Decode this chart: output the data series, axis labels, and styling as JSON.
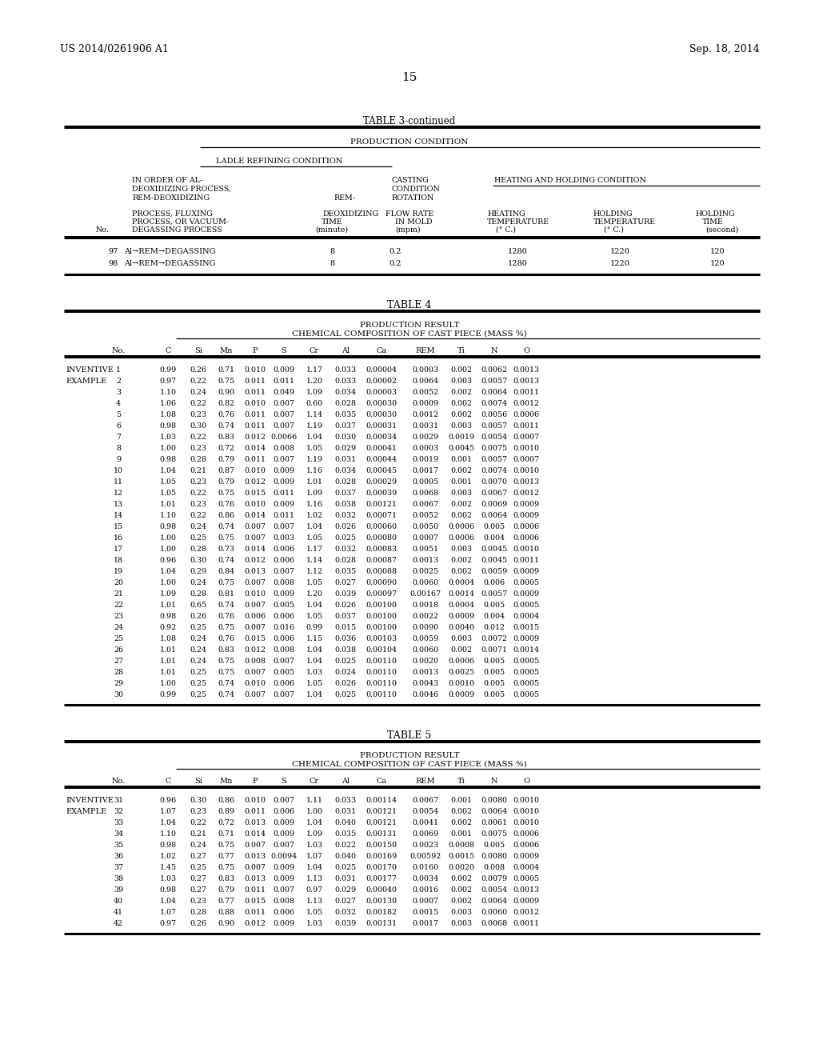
{
  "header_left": "US 2014/0261906 A1",
  "header_right": "Sep. 18, 2014",
  "page_number": "15",
  "table3_title": "TABLE 3-continued",
  "table3_subtitle1": "PRODUCTION CONDITION",
  "table3_ladle": "LADLE REFINING CONDITION",
  "table3_col1_line1": "IN ORDER OF AL-",
  "table3_col1_line2": "DEOXIDIZING PROCESS,",
  "table3_col1_line3": "REM-DEOXIDIZING",
  "table3_col2_header": "REM-",
  "table3_col3_line1": "CASTING",
  "table3_col3_line2": "CONDITION",
  "table3_col3_line3": "ROTATION",
  "table3_heating": "HEATING AND HOLDING CONDITION",
  "table3_col1_sub1": "PROCESS, FLUXING",
  "table3_col1_sub2": "PROCESS, OR VACUUM-",
  "table3_col2_sub": "DEOXIDIZING",
  "table3_col2_sub2": "TIME",
  "table3_col2_sub3": "(minute)",
  "table3_col3_sub": "FLOW RATE",
  "table3_col3_sub2": "IN MOLD",
  "table3_col3_sub3": "(mpm)",
  "table3_col4_sub": "HEATING",
  "table3_col4_sub2": "TEMPERATURE",
  "table3_col4_sub3": "(° C.)",
  "table3_col5_sub": "HOLDING",
  "table3_col5_sub2": "TEMPERATURE",
  "table3_col5_sub3": "(° C.)",
  "table3_col6_sub": "HOLDING",
  "table3_col6_sub2": "TIME",
  "table3_col6_sub3": "(second)",
  "table3_col1_last": "DEGASSING PROCESS",
  "table3_no_label": "No.",
  "table3_data": [
    [
      "97",
      "Al→REM→DEGASSING",
      "8",
      "0.2",
      "1280",
      "1220",
      "120"
    ],
    [
      "98",
      "Al→REM→DEGASSING",
      "8",
      "0.2",
      "1280",
      "1220",
      "120"
    ]
  ],
  "table4_title": "TABLE 4",
  "table4_subtitle1": "PRODUCTION RESULT",
  "table4_subtitle2": "CHEMICAL COMPOSITION OF CAST PIECE (MASS %)",
  "table4_col_headers": [
    "No.",
    "C",
    "Si",
    "Mn",
    "P",
    "S",
    "Cr",
    "Al",
    "Ca",
    "REM",
    "Ti",
    "N",
    "O"
  ],
  "table4_data": [
    [
      1,
      "0.99",
      "0.26",
      "0.71",
      "0.010",
      "0.009",
      "1.17",
      "0.033",
      "0.00004",
      "0.0003",
      "0.002",
      "0.0062",
      "0.0013"
    ],
    [
      2,
      "0.97",
      "0.22",
      "0.75",
      "0.011",
      "0.011",
      "1.20",
      "0.033",
      "0.00002",
      "0.0064",
      "0.003",
      "0.0057",
      "0.0013"
    ],
    [
      3,
      "1.10",
      "0.24",
      "0.90",
      "0.011",
      "0.049",
      "1.09",
      "0.034",
      "0.00003",
      "0.0052",
      "0.002",
      "0.0064",
      "0.0011"
    ],
    [
      4,
      "1.06",
      "0.22",
      "0.82",
      "0.010",
      "0.007",
      "0.60",
      "0.028",
      "0.00030",
      "0.0009",
      "0.002",
      "0.0074",
      "0.0012"
    ],
    [
      5,
      "1.08",
      "0.23",
      "0.76",
      "0.011",
      "0.007",
      "1.14",
      "0.035",
      "0.00030",
      "0.0012",
      "0.002",
      "0.0056",
      "0.0006"
    ],
    [
      6,
      "0.98",
      "0.30",
      "0.74",
      "0.011",
      "0.007",
      "1.19",
      "0.037",
      "0.00031",
      "0.0031",
      "0.003",
      "0.0057",
      "0.0011"
    ],
    [
      7,
      "1.03",
      "0.22",
      "0.83",
      "0.012",
      "0.0066",
      "1.04",
      "0.030",
      "0.00034",
      "0.0029",
      "0.0019",
      "0.0054",
      "0.0007"
    ],
    [
      8,
      "1.00",
      "0.23",
      "0.72",
      "0.014",
      "0.008",
      "1.05",
      "0.029",
      "0.00041",
      "0.0003",
      "0.0045",
      "0.0075",
      "0.0010"
    ],
    [
      9,
      "0.98",
      "0.28",
      "0.79",
      "0.011",
      "0.007",
      "1.19",
      "0.031",
      "0.00044",
      "0.0019",
      "0.001",
      "0.0057",
      "0.0007"
    ],
    [
      10,
      "1.04",
      "0.21",
      "0.87",
      "0.010",
      "0.009",
      "1.16",
      "0.034",
      "0.00045",
      "0.0017",
      "0.002",
      "0.0074",
      "0.0010"
    ],
    [
      11,
      "1.05",
      "0.23",
      "0.79",
      "0.012",
      "0.009",
      "1.01",
      "0.028",
      "0.00029",
      "0.0005",
      "0.001",
      "0.0070",
      "0.0013"
    ],
    [
      12,
      "1.05",
      "0.22",
      "0.75",
      "0.015",
      "0.011",
      "1.09",
      "0.037",
      "0.00039",
      "0.0068",
      "0.003",
      "0.0067",
      "0.0012"
    ],
    [
      13,
      "1.01",
      "0.23",
      "0.76",
      "0.010",
      "0.009",
      "1.16",
      "0.038",
      "0.00121",
      "0.0067",
      "0.002",
      "0.0069",
      "0.0009"
    ],
    [
      14,
      "1.10",
      "0.22",
      "0.86",
      "0.014",
      "0.011",
      "1.02",
      "0.032",
      "0.00071",
      "0.0052",
      "0.002",
      "0.0064",
      "0.0009"
    ],
    [
      15,
      "0.98",
      "0.24",
      "0.74",
      "0.007",
      "0.007",
      "1.04",
      "0.026",
      "0.00060",
      "0.0050",
      "0.0006",
      "0.005",
      "0.0006"
    ],
    [
      16,
      "1.00",
      "0.25",
      "0.75",
      "0.007",
      "0.003",
      "1.05",
      "0.025",
      "0.00080",
      "0.0007",
      "0.0006",
      "0.004",
      "0.0006"
    ],
    [
      17,
      "1.00",
      "0.28",
      "0.73",
      "0.014",
      "0.006",
      "1.17",
      "0.032",
      "0.00083",
      "0.0051",
      "0.003",
      "0.0045",
      "0.0010"
    ],
    [
      18,
      "0.96",
      "0.30",
      "0.74",
      "0.012",
      "0.006",
      "1.14",
      "0.028",
      "0.00087",
      "0.0013",
      "0.002",
      "0.0045",
      "0.0011"
    ],
    [
      19,
      "1.04",
      "0.29",
      "0.84",
      "0.013",
      "0.007",
      "1.12",
      "0.035",
      "0.00088",
      "0.0025",
      "0.002",
      "0.0059",
      "0.0009"
    ],
    [
      20,
      "1.00",
      "0.24",
      "0.75",
      "0.007",
      "0.008",
      "1.05",
      "0.027",
      "0.00090",
      "0.0060",
      "0.0004",
      "0.006",
      "0.0005"
    ],
    [
      21,
      "1.09",
      "0.28",
      "0.81",
      "0.010",
      "0.009",
      "1.20",
      "0.039",
      "0.00097",
      "0.00167",
      "0.0014",
      "0.0057",
      "0.0009"
    ],
    [
      22,
      "1.01",
      "0.65",
      "0.74",
      "0.007",
      "0.005",
      "1.04",
      "0.026",
      "0.00100",
      "0.0018",
      "0.0004",
      "0.005",
      "0.0005"
    ],
    [
      23,
      "0.98",
      "0.26",
      "0.76",
      "0.006",
      "0.006",
      "1.05",
      "0.037",
      "0.00100",
      "0.0022",
      "0.0009",
      "0.004",
      "0.0004"
    ],
    [
      24,
      "0.92",
      "0.25",
      "0.75",
      "0.007",
      "0.016",
      "0.99",
      "0.015",
      "0.00100",
      "0.0090",
      "0.0040",
      "0.012",
      "0.0015"
    ],
    [
      25,
      "1.08",
      "0.24",
      "0.76",
      "0.015",
      "0.006",
      "1.15",
      "0.036",
      "0.00103",
      "0.0059",
      "0.003",
      "0.0072",
      "0.0009"
    ],
    [
      26,
      "1.01",
      "0.24",
      "0.83",
      "0.012",
      "0.008",
      "1.04",
      "0.038",
      "0.00104",
      "0.0060",
      "0.002",
      "0.0071",
      "0.0014"
    ],
    [
      27,
      "1.01",
      "0.24",
      "0.75",
      "0.008",
      "0.007",
      "1.04",
      "0.025",
      "0.00110",
      "0.0020",
      "0.0006",
      "0.005",
      "0.0005"
    ],
    [
      28,
      "1.01",
      "0.25",
      "0.75",
      "0.007",
      "0.005",
      "1.03",
      "0.024",
      "0.00110",
      "0.0013",
      "0.0025",
      "0.005",
      "0.0005"
    ],
    [
      29,
      "1.00",
      "0.25",
      "0.74",
      "0.010",
      "0.006",
      "1.05",
      "0.026",
      "0.00110",
      "0.0043",
      "0.0010",
      "0.005",
      "0.0005"
    ],
    [
      30,
      "0.99",
      "0.25",
      "0.74",
      "0.007",
      "0.007",
      "1.04",
      "0.025",
      "0.00110",
      "0.0046",
      "0.0009",
      "0.005",
      "0.0005"
    ]
  ],
  "table5_title": "TABLE 5",
  "table5_subtitle1": "PRODUCTION RESULT",
  "table5_subtitle2": "CHEMICAL COMPOSITION OF CAST PIECE (MASS %)",
  "table5_col_headers": [
    "No.",
    "C",
    "Si",
    "Mn",
    "P",
    "S",
    "Cr",
    "Al",
    "Ca",
    "REM",
    "Ti",
    "N",
    "O"
  ],
  "table5_data": [
    [
      31,
      "0.96",
      "0.30",
      "0.86",
      "0.010",
      "0.007",
      "1.11",
      "0.033",
      "0.00114",
      "0.0067",
      "0.001",
      "0.0080",
      "0.0010"
    ],
    [
      32,
      "1.07",
      "0.23",
      "0.89",
      "0.011",
      "0.006",
      "1.00",
      "0.031",
      "0.00121",
      "0.0054",
      "0.002",
      "0.0064",
      "0.0010"
    ],
    [
      33,
      "1.04",
      "0.22",
      "0.72",
      "0.013",
      "0.009",
      "1.04",
      "0.040",
      "0.00121",
      "0.0041",
      "0.002",
      "0.0061",
      "0.0010"
    ],
    [
      34,
      "1.10",
      "0.21",
      "0.71",
      "0.014",
      "0.009",
      "1.09",
      "0.035",
      "0.00131",
      "0.0069",
      "0.001",
      "0.0075",
      "0.0006"
    ],
    [
      35,
      "0.98",
      "0.24",
      "0.75",
      "0.007",
      "0.007",
      "1.03",
      "0.022",
      "0.00150",
      "0.0023",
      "0.0008",
      "0.005",
      "0.0006"
    ],
    [
      36,
      "1.02",
      "0.27",
      "0.77",
      "0.013",
      "0.0094",
      "1.07",
      "0.040",
      "0.00169",
      "0.00592",
      "0.0015",
      "0.0080",
      "0.0009"
    ],
    [
      37,
      "1.45",
      "0.25",
      "0.75",
      "0.007",
      "0.009",
      "1.04",
      "0.025",
      "0.00170",
      "0.0160",
      "0.0020",
      "0.008",
      "0.0004"
    ],
    [
      38,
      "1.03",
      "0.27",
      "0.83",
      "0.013",
      "0.009",
      "1.13",
      "0.031",
      "0.00177",
      "0.0034",
      "0.002",
      "0.0079",
      "0.0005"
    ],
    [
      39,
      "0.98",
      "0.27",
      "0.79",
      "0.011",
      "0.007",
      "0.97",
      "0.029",
      "0.00040",
      "0.0016",
      "0.002",
      "0.0054",
      "0.0013"
    ],
    [
      40,
      "1.04",
      "0.23",
      "0.77",
      "0.015",
      "0.008",
      "1.13",
      "0.027",
      "0.00130",
      "0.0007",
      "0.002",
      "0.0064",
      "0.0009"
    ],
    [
      41,
      "1.07",
      "0.28",
      "0.88",
      "0.011",
      "0.006",
      "1.05",
      "0.032",
      "0.00182",
      "0.0015",
      "0.003",
      "0.0060",
      "0.0012"
    ],
    [
      42,
      "0.97",
      "0.26",
      "0.90",
      "0.012",
      "0.009",
      "1.03",
      "0.039",
      "0.00131",
      "0.0017",
      "0.003",
      "0.0068",
      "0.0011"
    ]
  ]
}
